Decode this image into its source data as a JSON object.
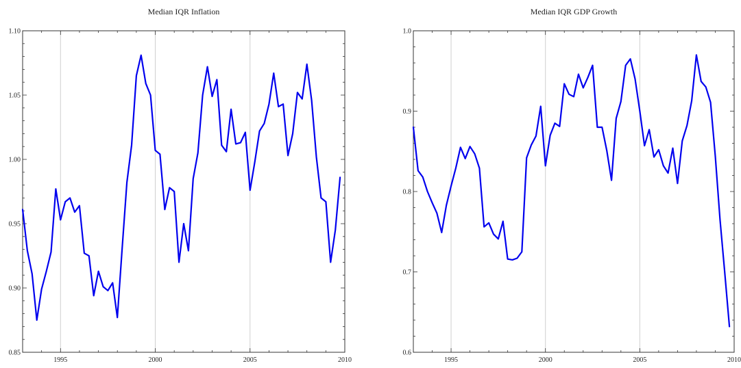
{
  "chart_data": [
    {
      "type": "line",
      "title": "Median IQR Inflation",
      "xlabel": "",
      "ylabel": "",
      "xlim": [
        1993,
        2010
      ],
      "ylim": [
        0.85,
        1.1
      ],
      "xticks": [
        1995,
        2000,
        2005,
        2010
      ],
      "xtick_labels": [
        "1995",
        "2000",
        "2005",
        "2010"
      ],
      "yticks": [
        0.85,
        0.9,
        0.95,
        1.0,
        1.05,
        1.1
      ],
      "ytick_labels": [
        "0.85",
        "0.90",
        "0.95",
        "1.00",
        "1.05",
        "1.10"
      ],
      "vertical_gridlines": [
        1995,
        2000,
        2005
      ],
      "series": [
        {
          "color": "#0000ee",
          "x": [
            1993.0,
            1993.25,
            1993.5,
            1993.75,
            1994.0,
            1994.25,
            1994.5,
            1994.75,
            1995.0,
            1995.25,
            1995.5,
            1995.75,
            1996.0,
            1996.25,
            1996.5,
            1996.75,
            1997.0,
            1997.25,
            1997.5,
            1997.75,
            1998.0,
            1998.25,
            1998.5,
            1998.75,
            1999.0,
            1999.25,
            1999.5,
            1999.75,
            2000.0,
            2000.25,
            2000.5,
            2000.75,
            2001.0,
            2001.25,
            2001.5,
            2001.75,
            2002.0,
            2002.25,
            2002.5,
            2002.75,
            2003.0,
            2003.25,
            2003.5,
            2003.75,
            2004.0,
            2004.25,
            2004.5,
            2004.75,
            2005.0,
            2005.25,
            2005.5,
            2005.75,
            2006.0,
            2006.25,
            2006.5,
            2006.75,
            2007.0,
            2007.25,
            2007.5,
            2007.75,
            2008.0,
            2008.25,
            2008.5,
            2008.75,
            2009.0,
            2009.25,
            2009.5,
            2009.75
          ],
          "y": [
            0.961,
            0.929,
            0.911,
            0.875,
            0.899,
            0.913,
            0.928,
            0.977,
            0.953,
            0.967,
            0.97,
            0.959,
            0.964,
            0.927,
            0.925,
            0.894,
            0.913,
            0.901,
            0.898,
            0.904,
            0.877,
            0.93,
            0.982,
            1.011,
            1.065,
            1.081,
            1.059,
            1.05,
            1.007,
            1.004,
            0.961,
            0.978,
            0.975,
            0.92,
            0.95,
            0.929,
            0.985,
            1.005,
            1.05,
            1.072,
            1.049,
            1.062,
            1.011,
            1.006,
            1.039,
            1.012,
            1.013,
            1.021,
            0.976,
            0.998,
            1.022,
            1.028,
            1.043,
            1.067,
            1.041,
            1.043,
            1.003,
            1.02,
            1.052,
            1.047,
            1.074,
            1.046,
            1.002,
            0.97,
            0.967,
            0.92,
            0.945,
            0.986
          ]
        }
      ]
    },
    {
      "type": "line",
      "title": "Median IQR GDP Growth",
      "xlabel": "",
      "ylabel": "",
      "xlim": [
        1993,
        2010
      ],
      "ylim": [
        0.6,
        1.0
      ],
      "xticks": [
        1995,
        2000,
        2005,
        2010
      ],
      "xtick_labels": [
        "1995",
        "2000",
        "2005",
        "2010"
      ],
      "yticks": [
        0.6,
        0.7,
        0.8,
        0.9,
        1.0
      ],
      "ytick_labels": [
        "0.6",
        "0.7",
        "0.8",
        "0.9",
        "1.0"
      ],
      "vertical_gridlines": [
        1995,
        2000,
        2005
      ],
      "series": [
        {
          "color": "#0000ee",
          "x": [
            1993.0,
            1993.25,
            1993.5,
            1993.75,
            1994.0,
            1994.25,
            1994.5,
            1994.75,
            1995.0,
            1995.25,
            1995.5,
            1995.75,
            1996.0,
            1996.25,
            1996.5,
            1996.75,
            1997.0,
            1997.25,
            1997.5,
            1997.75,
            1998.0,
            1998.25,
            1998.5,
            1998.75,
            1999.0,
            1999.25,
            1999.5,
            1999.75,
            2000.0,
            2000.25,
            2000.5,
            2000.75,
            2001.0,
            2001.25,
            2001.5,
            2001.75,
            2002.0,
            2002.25,
            2002.5,
            2002.75,
            2003.0,
            2003.25,
            2003.5,
            2003.75,
            2004.0,
            2004.25,
            2004.5,
            2004.75,
            2005.0,
            2005.25,
            2005.5,
            2005.75,
            2006.0,
            2006.25,
            2006.5,
            2006.75,
            2007.0,
            2007.25,
            2007.5,
            2007.75,
            2008.0,
            2008.25,
            2008.5,
            2008.75,
            2009.0,
            2009.25,
            2009.5,
            2009.75
          ],
          "y": [
            0.88,
            0.826,
            0.818,
            0.8,
            0.786,
            0.773,
            0.749,
            0.783,
            0.807,
            0.829,
            0.855,
            0.841,
            0.856,
            0.847,
            0.829,
            0.756,
            0.761,
            0.747,
            0.741,
            0.763,
            0.716,
            0.715,
            0.717,
            0.725,
            0.842,
            0.858,
            0.869,
            0.906,
            0.832,
            0.87,
            0.885,
            0.881,
            0.934,
            0.921,
            0.918,
            0.946,
            0.929,
            0.942,
            0.957,
            0.88,
            0.88,
            0.851,
            0.814,
            0.891,
            0.912,
            0.957,
            0.965,
            0.94,
            0.9,
            0.857,
            0.877,
            0.843,
            0.852,
            0.832,
            0.823,
            0.854,
            0.81,
            0.863,
            0.882,
            0.913,
            0.97,
            0.937,
            0.93,
            0.911,
            0.844,
            0.765,
            0.7,
            0.632
          ]
        }
      ]
    }
  ]
}
